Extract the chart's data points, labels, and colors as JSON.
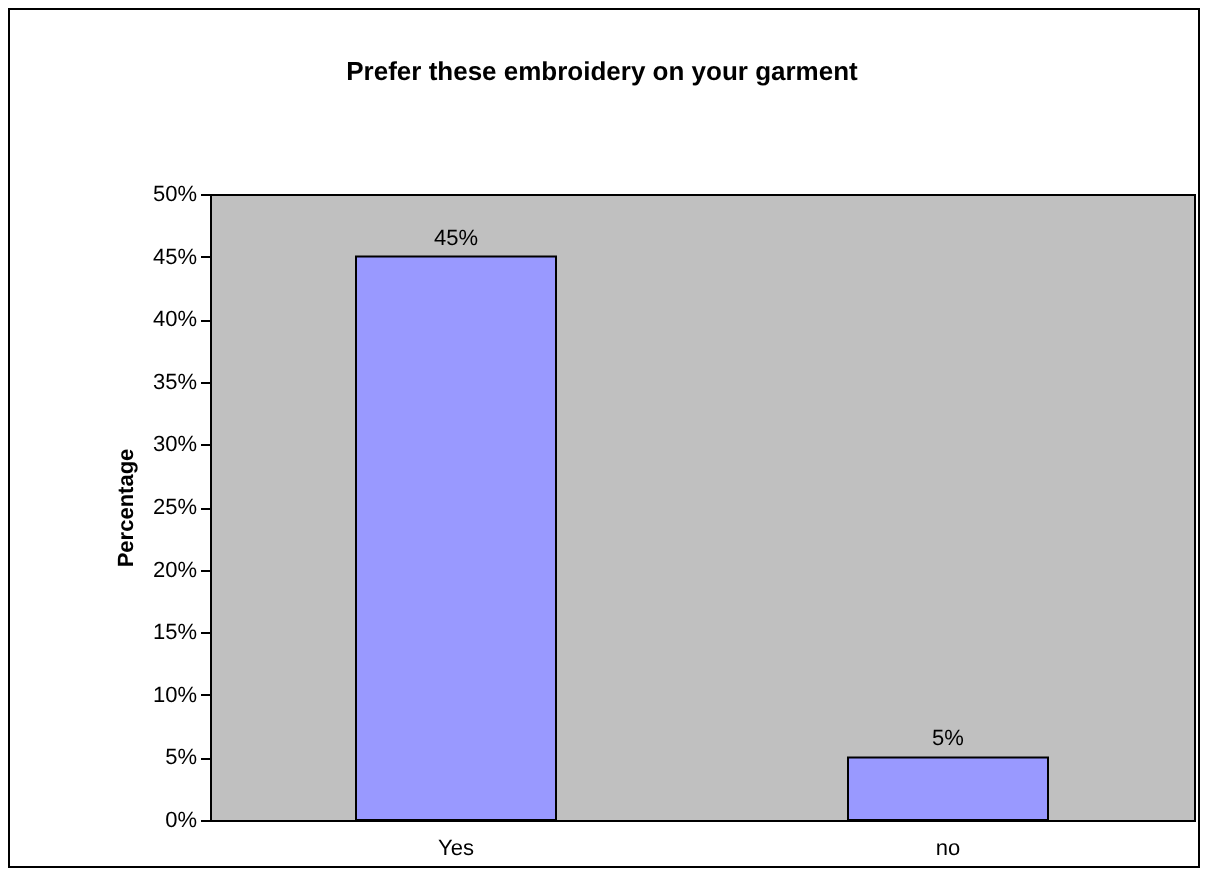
{
  "chart_data": {
    "type": "bar",
    "title": "Prefer these embroidery on your garment",
    "ylabel": "Percentage",
    "categories": [
      "Yes",
      "no"
    ],
    "values": [
      45,
      5
    ],
    "value_labels": [
      "45%",
      "5%"
    ],
    "color": "#9999ff",
    "ylim": [
      0,
      50
    ],
    "yticks": [
      {
        "value": 0,
        "label": "0%"
      },
      {
        "value": 5,
        "label": "5%"
      },
      {
        "value": 10,
        "label": "10%"
      },
      {
        "value": 15,
        "label": "15%"
      },
      {
        "value": 20,
        "label": "20%"
      },
      {
        "value": 25,
        "label": "25%"
      },
      {
        "value": 30,
        "label": "30%"
      },
      {
        "value": 35,
        "label": "35%"
      },
      {
        "value": 40,
        "label": "40%"
      },
      {
        "value": 45,
        "label": "45%"
      },
      {
        "value": 50,
        "label": "50%"
      }
    ],
    "grid": false
  }
}
